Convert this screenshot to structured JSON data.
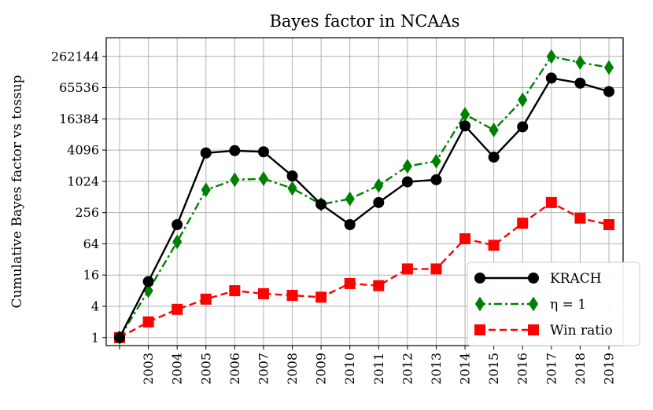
{
  "chart_data": {
    "type": "line",
    "title": "Bayes factor in NCAAs",
    "xlabel": "",
    "ylabel": "Cumulative Bayes factor vs tossup",
    "y_scale": "log2",
    "ylim": [
      0.7,
      600000
    ],
    "y_ticks": [
      1,
      4,
      16,
      64,
      256,
      1024,
      4096,
      16384,
      65536,
      262144
    ],
    "y_tick_labels": [
      "1",
      "4",
      "16",
      "64",
      "256",
      "1024",
      "4096",
      "16384",
      "65536",
      "262144"
    ],
    "x": [
      "",
      "2003",
      "2004",
      "2005",
      "2006",
      "2007",
      "2008",
      "2009",
      "2010",
      "2011",
      "2012",
      "2013",
      "2014",
      "2015",
      "2016",
      "2017",
      "2018",
      "2019"
    ],
    "grid": true,
    "legend_position": "bottom-right",
    "series": [
      {
        "name": "KRACH",
        "color": "#000000",
        "marker": "circle",
        "line_style": "solid",
        "values": [
          1,
          12,
          150,
          3600,
          4000,
          3800,
          1300,
          370,
          150,
          400,
          1000,
          1100,
          12000,
          3000,
          11500,
          100000,
          80000,
          55000
        ]
      },
      {
        "name": "η = 1",
        "color": "#008000",
        "marker": "diamond",
        "line_style": "dashdot",
        "values": [
          1,
          8,
          70,
          700,
          1100,
          1150,
          750,
          370,
          470,
          850,
          2000,
          2500,
          20000,
          10000,
          38000,
          260000,
          200000,
          160000
        ]
      },
      {
        "name": "Win ratio",
        "color": "#ff0000",
        "marker": "square",
        "line_style": "dashed",
        "values": [
          1,
          2,
          3.5,
          5.5,
          8,
          7,
          6.5,
          6,
          11,
          10,
          21,
          21,
          80,
          60,
          160,
          400,
          200,
          150
        ]
      }
    ]
  }
}
